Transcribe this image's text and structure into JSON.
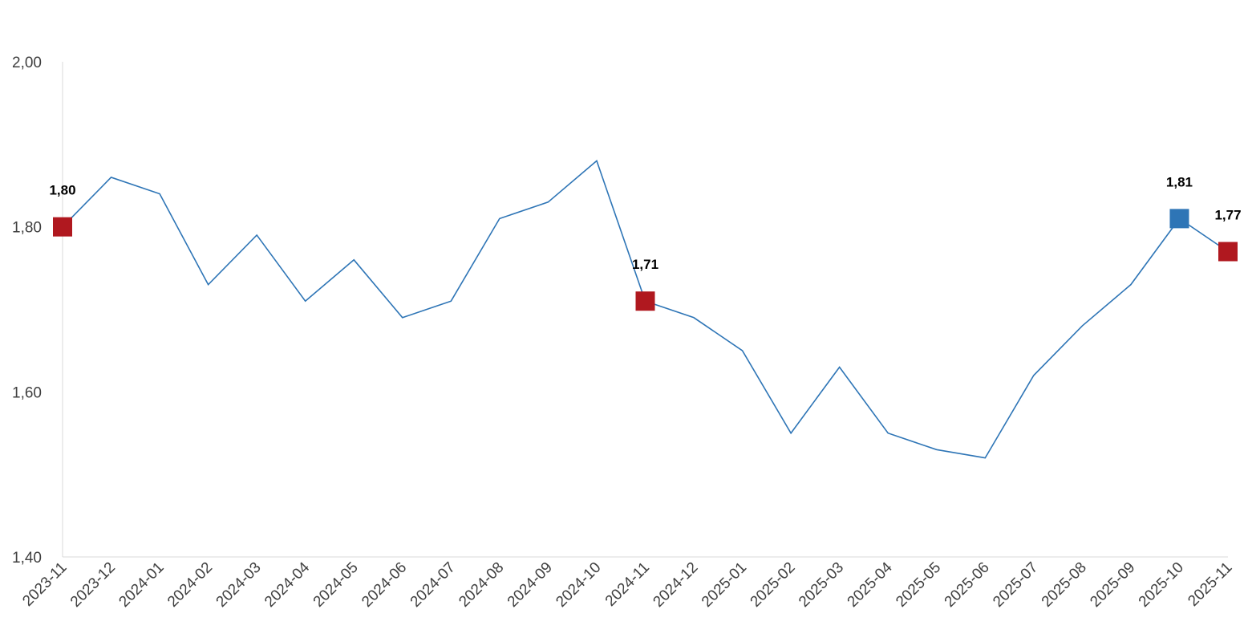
{
  "chart_data": {
    "type": "line",
    "title": "",
    "xlabel": "",
    "ylabel": "",
    "ylim": [
      1.4,
      2.0
    ],
    "yticks": [
      "1,40",
      "1,60",
      "1,80",
      "2,00"
    ],
    "ytick_values": [
      1.4,
      1.6,
      1.8,
      2.0
    ],
    "grid": false,
    "legend": "none",
    "categories": [
      "2023-11",
      "2023-12",
      "2024-01",
      "2024-02",
      "2024-03",
      "2024-04",
      "2024-05",
      "2024-06",
      "2024-07",
      "2024-08",
      "2024-09",
      "2024-10",
      "2024-11",
      "2024-12",
      "2025-01",
      "2025-02",
      "2025-03",
      "2025-04",
      "2025-05",
      "2025-06",
      "2025-07",
      "2025-08",
      "2025-09",
      "2025-10",
      "2025-11"
    ],
    "values": [
      1.8,
      1.86,
      1.84,
      1.73,
      1.79,
      1.71,
      1.76,
      1.69,
      1.71,
      1.81,
      1.83,
      1.88,
      1.71,
      1.69,
      1.65,
      1.55,
      1.63,
      1.55,
      1.53,
      1.52,
      1.62,
      1.68,
      1.73,
      1.81,
      1.77
    ],
    "line_color": "#2e75b6",
    "highlights": [
      {
        "index": 0,
        "label": "1,80",
        "color": "#b0181f"
      },
      {
        "index": 12,
        "label": "1,71",
        "color": "#b0181f"
      },
      {
        "index": 23,
        "label": "1,81",
        "color": "#2e75b6"
      },
      {
        "index": 24,
        "label": "1,77",
        "color": "#b0181f"
      }
    ]
  }
}
